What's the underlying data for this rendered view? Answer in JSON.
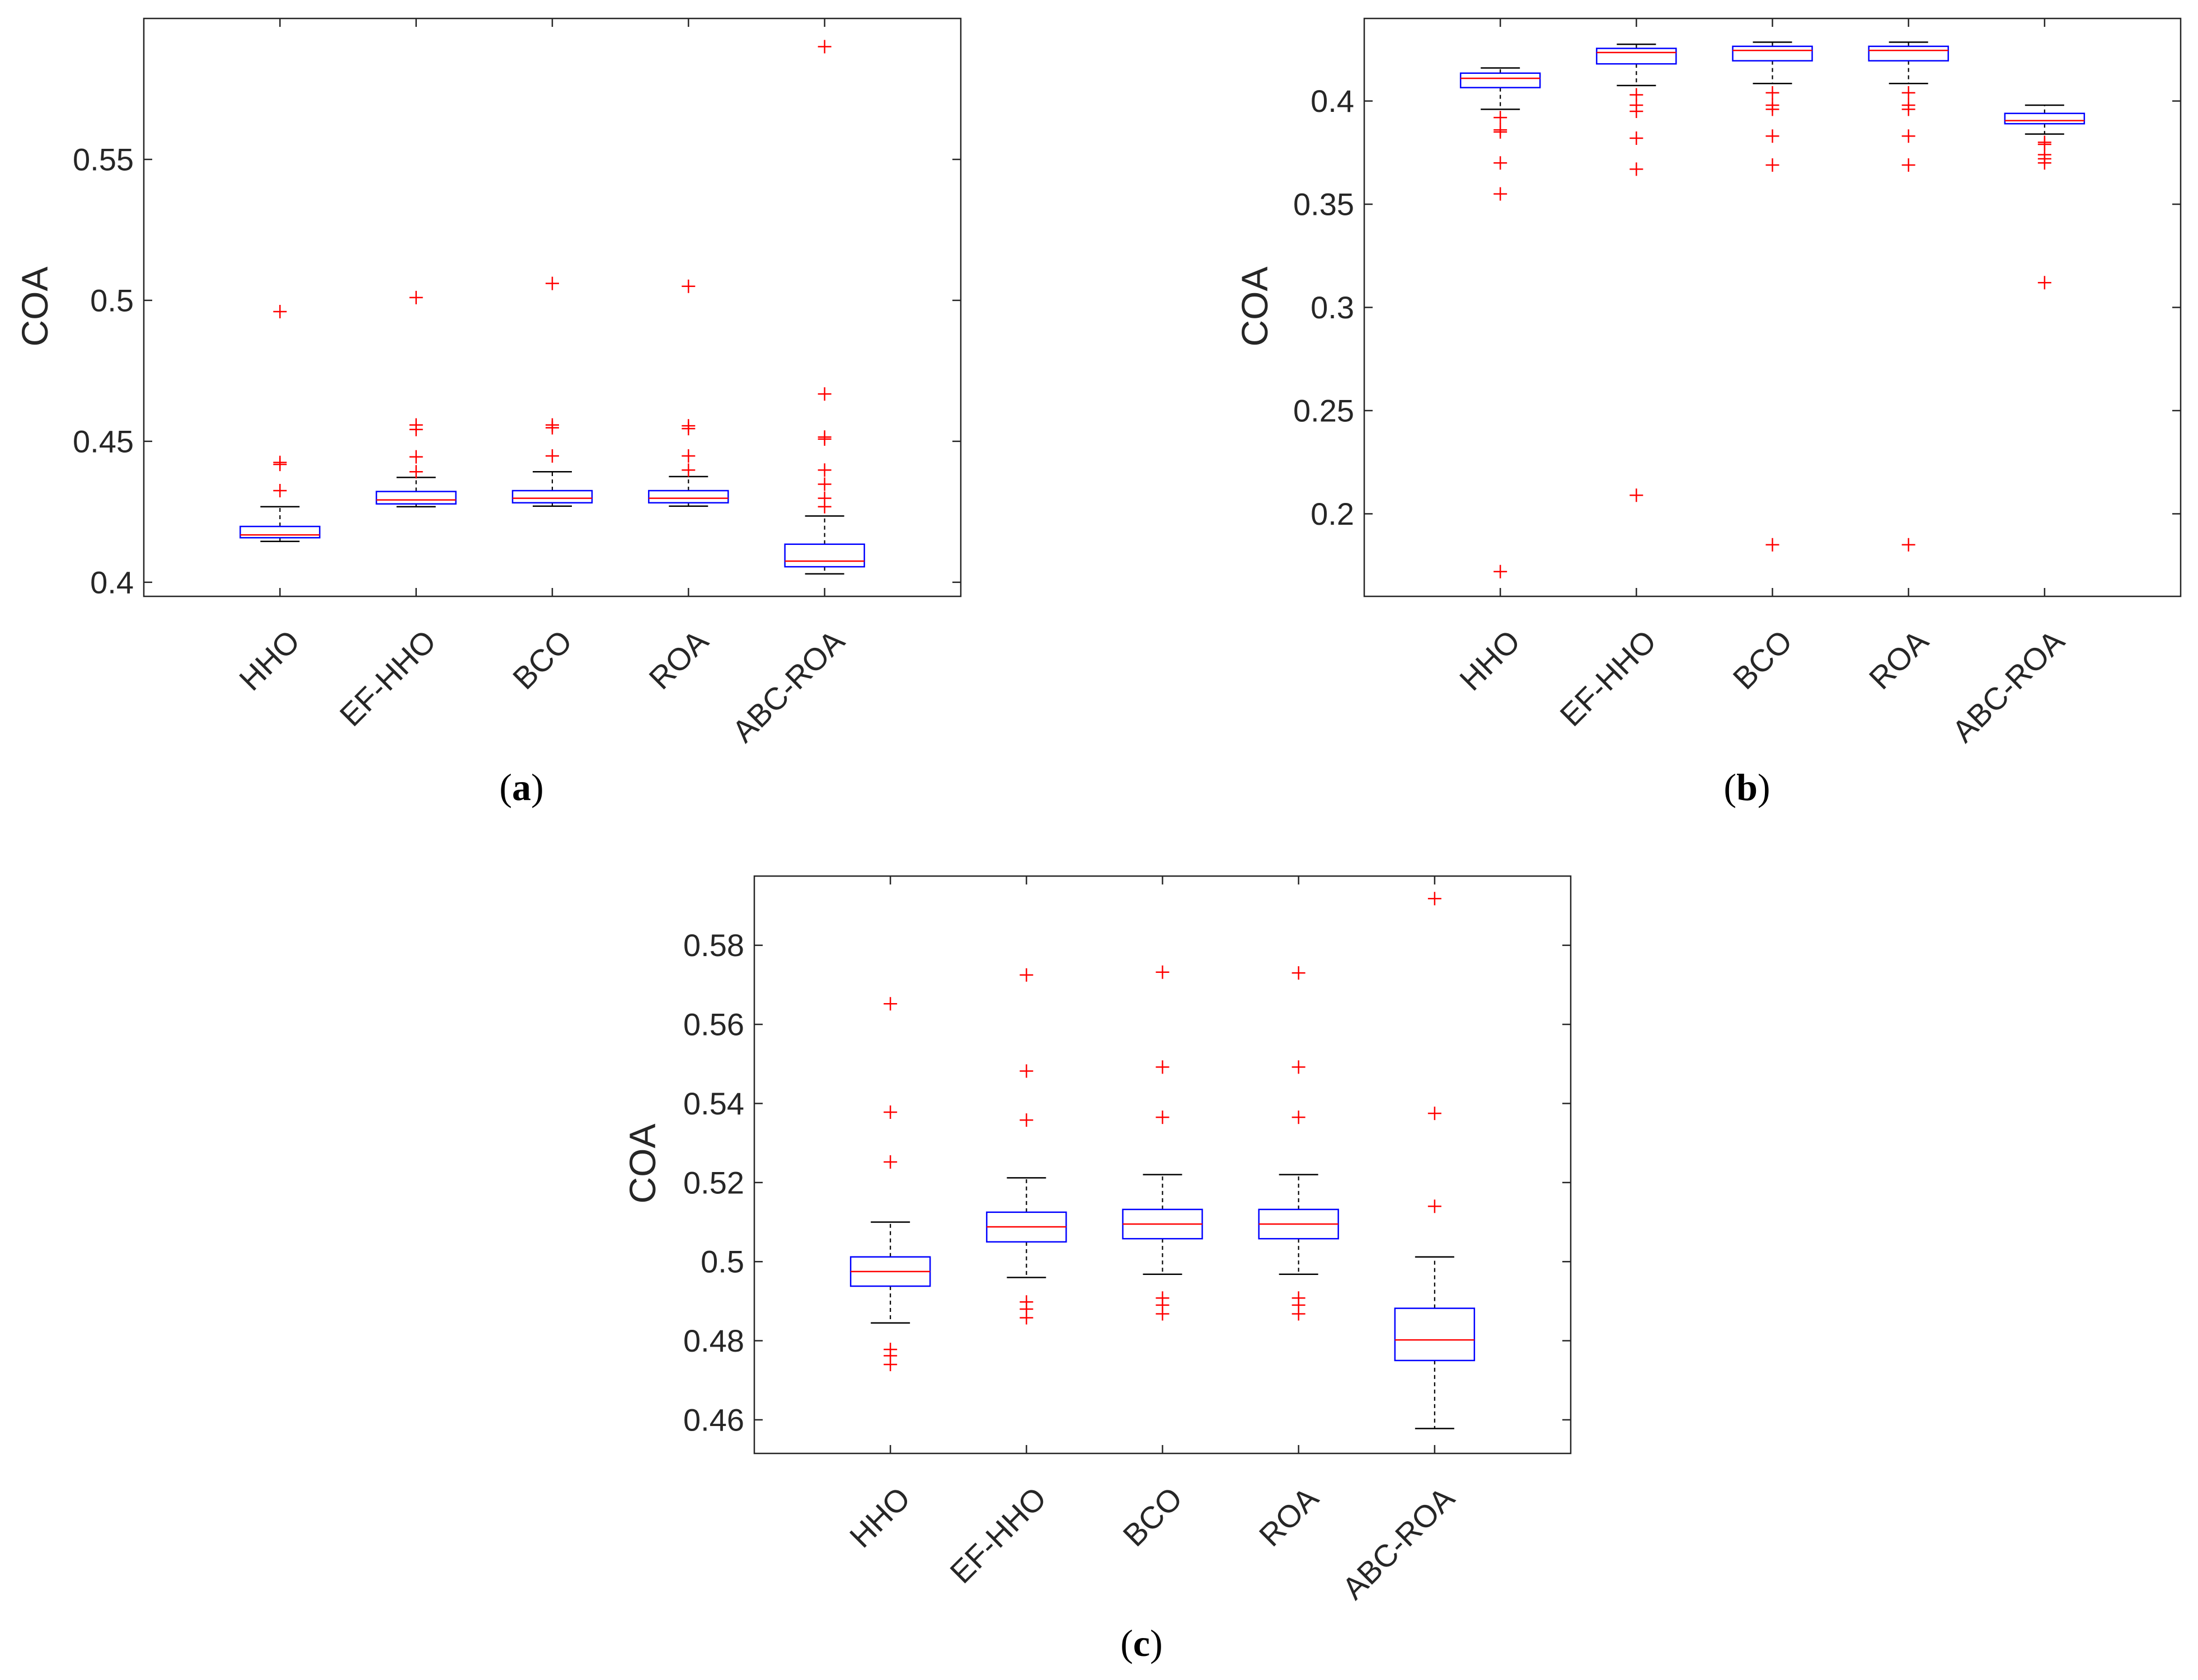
{
  "chart_data": [
    {
      "type": "box",
      "panel": "a",
      "caption_open": "(",
      "caption_letter": "a",
      "caption_close": ")",
      "ylabel": "COA",
      "xlabel": "",
      "categories": [
        "HHO",
        "EF-HHO",
        "BCO",
        "ROA",
        "ABC-ROA"
      ],
      "ylim": [
        0.395,
        0.6
      ],
      "yticks": [
        0.4,
        0.45,
        0.5,
        0.55
      ],
      "ytick_labels": [
        "0.4",
        "0.45",
        "0.5",
        "0.55"
      ],
      "boxes": [
        {
          "name": "HHO",
          "whisker_low": 0.4145,
          "q1": 0.4158,
          "median": 0.4168,
          "q3": 0.4198,
          "whisker_high": 0.4268,
          "outliers": [
            0.4325,
            0.4418,
            0.4425,
            0.496
          ]
        },
        {
          "name": "EF-HHO",
          "whisker_low": 0.4268,
          "q1": 0.4278,
          "median": 0.4292,
          "q3": 0.4322,
          "whisker_high": 0.4372,
          "outliers": [
            0.4392,
            0.4445,
            0.4542,
            0.4558,
            0.501
          ]
        },
        {
          "name": "BCO",
          "whisker_low": 0.427,
          "q1": 0.4282,
          "median": 0.4298,
          "q3": 0.4325,
          "whisker_high": 0.4392,
          "outliers": [
            0.4448,
            0.4548,
            0.4558,
            0.506
          ]
        },
        {
          "name": "ROA",
          "whisker_low": 0.427,
          "q1": 0.4282,
          "median": 0.4298,
          "q3": 0.4325,
          "whisker_high": 0.4375,
          "outliers": [
            0.4398,
            0.4448,
            0.4545,
            0.4555,
            0.505
          ]
        },
        {
          "name": "ABC-ROA",
          "whisker_low": 0.403,
          "q1": 0.4055,
          "median": 0.4075,
          "q3": 0.4135,
          "whisker_high": 0.4235,
          "outliers": [
            0.4268,
            0.4298,
            0.4348,
            0.4398,
            0.4508,
            0.4515,
            0.4668,
            0.59
          ]
        }
      ]
    },
    {
      "type": "box",
      "panel": "b",
      "caption_open": "(",
      "caption_letter": "b",
      "caption_close": ")",
      "ylabel": "COA",
      "xlabel": "",
      "categories": [
        "HHO",
        "EF-HHO",
        "BCO",
        "ROA",
        "ABC-ROA"
      ],
      "ylim": [
        0.16,
        0.44
      ],
      "yticks": [
        0.2,
        0.25,
        0.3,
        0.35,
        0.4
      ],
      "ytick_labels": [
        "0.2",
        "0.25",
        "0.3",
        "0.35",
        "0.4"
      ],
      "boxes": [
        {
          "name": "HHO",
          "whisker_low": 0.396,
          "q1": 0.4065,
          "median": 0.411,
          "q3": 0.4135,
          "whisker_high": 0.416,
          "outliers": [
            0.392,
            0.386,
            0.385,
            0.37,
            0.355,
            0.172
          ]
        },
        {
          "name": "EF-HHO",
          "whisker_low": 0.4075,
          "q1": 0.418,
          "median": 0.4235,
          "q3": 0.4255,
          "whisker_high": 0.4275,
          "outliers": [
            0.403,
            0.398,
            0.395,
            0.382,
            0.367,
            0.209
          ]
        },
        {
          "name": "BCO",
          "whisker_low": 0.4085,
          "q1": 0.4195,
          "median": 0.4245,
          "q3": 0.4265,
          "whisker_high": 0.4285,
          "outliers": [
            0.404,
            0.398,
            0.396,
            0.383,
            0.369,
            0.185
          ]
        },
        {
          "name": "ROA",
          "whisker_low": 0.4085,
          "q1": 0.4195,
          "median": 0.4245,
          "q3": 0.4265,
          "whisker_high": 0.4285,
          "outliers": [
            0.404,
            0.398,
            0.396,
            0.383,
            0.369,
            0.185
          ]
        },
        {
          "name": "ABC-ROA",
          "whisker_low": 0.384,
          "q1": 0.389,
          "median": 0.3905,
          "q3": 0.394,
          "whisker_high": 0.398,
          "outliers": [
            0.38,
            0.379,
            0.374,
            0.372,
            0.37,
            0.312
          ]
        }
      ]
    },
    {
      "type": "box",
      "panel": "c",
      "caption_open": "(",
      "caption_letter": "c",
      "caption_close": ")",
      "ylabel": "COA",
      "xlabel": "",
      "categories": [
        "HHO",
        "EF-HHO",
        "BCO",
        "ROA",
        "ABC-ROA"
      ],
      "ylim": [
        0.4515,
        0.5975
      ],
      "yticks": [
        0.46,
        0.48,
        0.5,
        0.52,
        0.54,
        0.56,
        0.58
      ],
      "ytick_labels": [
        "0.46",
        "0.48",
        "0.5",
        "0.52",
        "0.54",
        "0.56",
        "0.58"
      ],
      "boxes": [
        {
          "name": "HHO",
          "whisker_low": 0.4845,
          "q1": 0.4938,
          "median": 0.4975,
          "q3": 0.5012,
          "whisker_high": 0.51,
          "outliers": [
            0.4778,
            0.4762,
            0.474,
            0.5252,
            0.5378,
            0.5652
          ]
        },
        {
          "name": "EF-HHO",
          "whisker_low": 0.496,
          "q1": 0.505,
          "median": 0.5088,
          "q3": 0.5125,
          "whisker_high": 0.5212,
          "outliers": [
            0.4898,
            0.488,
            0.4858,
            0.5358,
            0.5482,
            0.5725
          ]
        },
        {
          "name": "BCO",
          "whisker_low": 0.4968,
          "q1": 0.5058,
          "median": 0.5095,
          "q3": 0.5132,
          "whisker_high": 0.522,
          "outliers": [
            0.4908,
            0.489,
            0.4868,
            0.5365,
            0.5492,
            0.5732
          ]
        },
        {
          "name": "ROA",
          "whisker_low": 0.4968,
          "q1": 0.5058,
          "median": 0.5095,
          "q3": 0.5132,
          "whisker_high": 0.522,
          "outliers": [
            0.4908,
            0.489,
            0.4868,
            0.5365,
            0.5492,
            0.573
          ]
        },
        {
          "name": "ABC-ROA",
          "whisker_low": 0.4578,
          "q1": 0.475,
          "median": 0.4802,
          "q3": 0.4882,
          "whisker_high": 0.5012,
          "outliers": [
            0.514,
            0.5375,
            0.5918
          ]
        }
      ]
    }
  ],
  "colors": {
    "box": "#0000ff",
    "median": "#ff0000",
    "outlier": "#ff0000",
    "whisker": "#000000",
    "axis": "#262626"
  }
}
